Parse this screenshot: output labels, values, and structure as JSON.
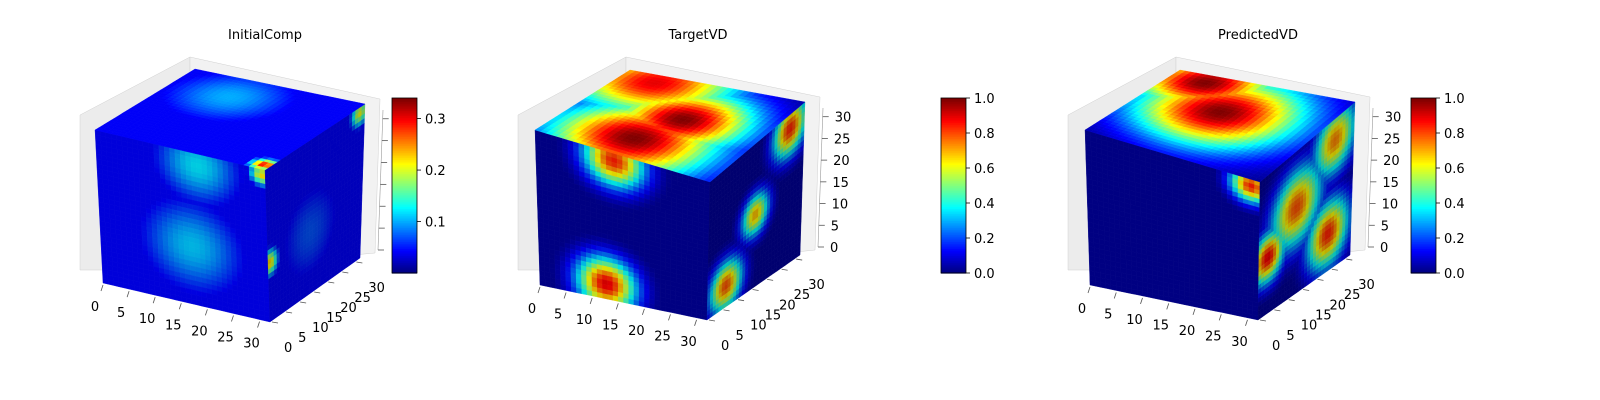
{
  "figure": {
    "background": "#ffffff",
    "colormap": "jet"
  },
  "chart_data": [
    {
      "type": "heatmap",
      "subtype": "3d-voxel-cube",
      "title": "InitialComp",
      "grid": "on",
      "axes": {
        "x": {
          "range": [
            0,
            32
          ],
          "ticks": [
            0,
            5,
            10,
            15,
            20,
            25,
            30
          ]
        },
        "y": {
          "range": [
            0,
            32
          ],
          "ticks": [
            0,
            5,
            10,
            15,
            20,
            25,
            30
          ]
        },
        "z": {
          "range": [
            0,
            32
          ],
          "ticks": []
        }
      },
      "colorbar": {
        "range": [
          0.0,
          0.34
        ],
        "ticks": [
          "0.1",
          "0.2",
          "0.3"
        ]
      },
      "features": {
        "background_value": 0.04,
        "top": [
          {
            "cx": 0.06,
            "cy": 0.96,
            "r": 0.05,
            "v": 0.3
          },
          {
            "cx": 0.75,
            "cy": 0.35,
            "r": 0.25,
            "v": 0.1
          }
        ],
        "front": [
          {
            "cx": 0.55,
            "cy": 0.62,
            "r": 0.22,
            "v": 0.11
          },
          {
            "cx": 0.98,
            "cy": 0.04,
            "r": 0.05,
            "v": 0.22
          },
          {
            "cx": 0.6,
            "cy": 0.08,
            "r": 0.18,
            "v": 0.12
          }
        ],
        "side": [
          {
            "cx": 0.02,
            "cy": 0.62,
            "r": 0.06,
            "v": 0.23
          },
          {
            "cx": 0.95,
            "cy": 0.04,
            "r": 0.06,
            "v": 0.21
          },
          {
            "cx": 0.45,
            "cy": 0.6,
            "r": 0.25,
            "v": 0.07
          }
        ]
      }
    },
    {
      "type": "heatmap",
      "subtype": "3d-voxel-cube",
      "title": "TargetVD",
      "grid": "on",
      "axes": {
        "x": {
          "range": [
            0,
            32
          ],
          "ticks": [
            0,
            5,
            10,
            15,
            20,
            25,
            30
          ]
        },
        "y": {
          "range": [
            0,
            32
          ],
          "ticks": [
            0,
            5,
            10,
            15,
            20,
            25,
            30
          ]
        },
        "z": {
          "range": [
            0,
            32
          ],
          "ticks": [
            0,
            5,
            10,
            15,
            20,
            25,
            30
          ]
        }
      },
      "colorbar": {
        "range": [
          0.0,
          1.0
        ],
        "ticks": [
          "0.0",
          "0.2",
          "0.4",
          "0.6",
          "0.8",
          "1.0"
        ]
      },
      "features": {
        "background_value": 0.02,
        "top": [
          {
            "cx": 0.22,
            "cy": 0.45,
            "r": 0.3,
            "v": 1.0
          },
          {
            "cx": 0.55,
            "cy": 0.55,
            "r": 0.25,
            "v": 1.0
          },
          {
            "cx": 0.9,
            "cy": 0.2,
            "r": 0.3,
            "v": 0.9
          }
        ],
        "front": [
          {
            "cx": 0.4,
            "cy": 0.9,
            "r": 0.12,
            "v": 0.9
          },
          {
            "cx": 0.45,
            "cy": 0.05,
            "r": 0.12,
            "v": 0.85
          }
        ],
        "side": [
          {
            "cx": 0.2,
            "cy": 0.85,
            "r": 0.12,
            "v": 0.8
          },
          {
            "cx": 0.5,
            "cy": 0.5,
            "r": 0.1,
            "v": 0.7
          },
          {
            "cx": 0.85,
            "cy": 0.1,
            "r": 0.12,
            "v": 0.85
          }
        ]
      }
    },
    {
      "type": "heatmap",
      "subtype": "3d-voxel-cube",
      "title": "PredictedVD",
      "grid": "on",
      "axes": {
        "x": {
          "range": [
            0,
            32
          ],
          "ticks": [
            0,
            5,
            10,
            15,
            20,
            25,
            30
          ]
        },
        "y": {
          "range": [
            0,
            32
          ],
          "ticks": [
            0,
            5,
            10,
            15,
            20,
            25,
            30
          ]
        },
        "z": {
          "range": [
            0,
            32
          ],
          "ticks": [
            0,
            5,
            10,
            15,
            20,
            25,
            30
          ]
        }
      },
      "colorbar": {
        "range": [
          0.0,
          1.0
        ],
        "ticks": [
          "0.0",
          "0.2",
          "0.4",
          "0.6",
          "0.8",
          "1.0"
        ]
      },
      "features": {
        "background_value": 0.02,
        "top": [
          {
            "cx": 0.6,
            "cy": 0.45,
            "r": 0.3,
            "v": 1.0
          },
          {
            "cx": 0.9,
            "cy": 0.2,
            "r": 0.25,
            "v": 1.0
          }
        ],
        "front": [
          {
            "cx": 0.95,
            "cy": 0.05,
            "r": 0.08,
            "v": 0.85
          }
        ],
        "side": [
          {
            "cx": 0.1,
            "cy": 0.6,
            "r": 0.12,
            "v": 0.9
          },
          {
            "cx": 0.4,
            "cy": 0.4,
            "r": 0.18,
            "v": 0.8
          },
          {
            "cx": 0.75,
            "cy": 0.75,
            "r": 0.15,
            "v": 0.85
          },
          {
            "cx": 0.8,
            "cy": 0.15,
            "r": 0.15,
            "v": 0.75
          }
        ]
      }
    }
  ]
}
